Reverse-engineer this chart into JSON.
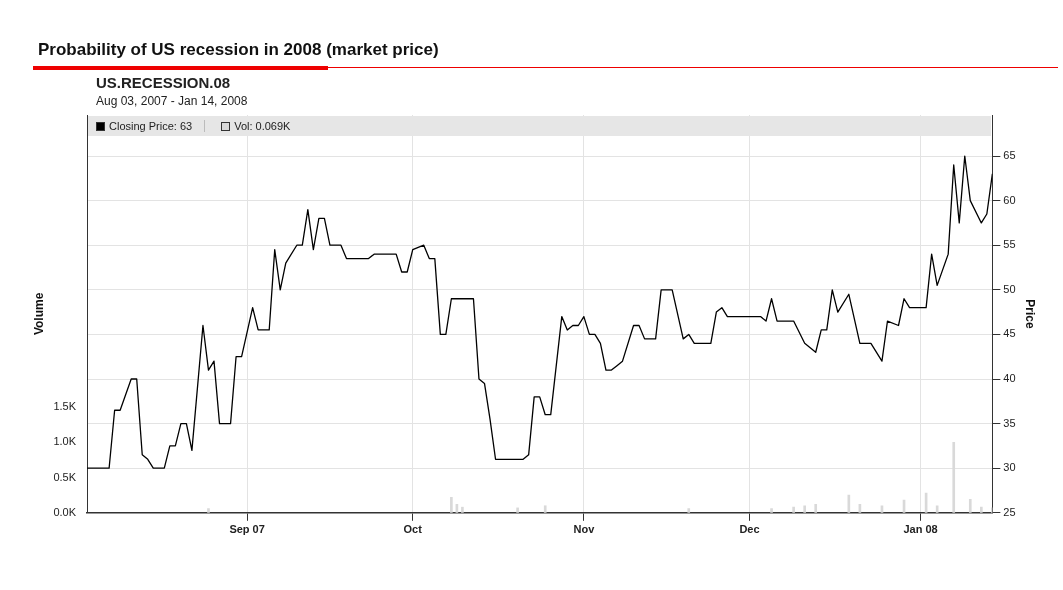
{
  "chart_data": {
    "type": "line",
    "title": "Probability of US recession in 2008 (market price)",
    "subtitle": "US.RECESSION.08\nAug 03, 2007 - Jan 14, 2008",
    "ylabel": "Price",
    "y2label": "Volume",
    "xlim": [
      "2007-08-03",
      "2008-01-14"
    ],
    "xticks": [
      {
        "value": "2007-09-01",
        "label": "Sep 07"
      },
      {
        "value": "2007-10-01",
        "label": "Oct"
      },
      {
        "value": "2007-11-01",
        "label": "Nov"
      },
      {
        "value": "2007-12-01",
        "label": "Dec"
      },
      {
        "value": "2008-01-01",
        "label": "Jan 08"
      }
    ],
    "ylim": [
      25,
      69.6
    ],
    "yticks": [
      25,
      30,
      35,
      40,
      45,
      50,
      55,
      60,
      65
    ],
    "y2lim": [
      0,
      5.65
    ],
    "y2ticks": [
      {
        "value": 0,
        "label": "0.0K"
      },
      {
        "value": 0.5,
        "label": "0.5K"
      },
      {
        "value": 1,
        "label": "1.0K"
      },
      {
        "value": 1.5,
        "label": "1.5K"
      }
    ],
    "grid": true,
    "legend": "top left",
    "marker": "none",
    "line_style": "solid",
    "series": [
      {
        "name": "Closing Price: 63",
        "color": "#000000",
        "x": [
          "2007-08-03",
          "2007-08-07",
          "2007-08-08",
          "2007-08-09",
          "2007-08-11",
          "2007-08-12",
          "2007-08-13",
          "2007-08-14",
          "2007-08-15",
          "2007-08-17",
          "2007-08-18",
          "2007-08-19",
          "2007-08-20",
          "2007-08-21",
          "2007-08-22",
          "2007-08-24",
          "2007-08-25",
          "2007-08-26",
          "2007-08-27",
          "2007-08-29",
          "2007-08-30",
          "2007-08-31",
          "2007-09-02",
          "2007-09-03",
          "2007-09-05",
          "2007-09-06",
          "2007-09-07",
          "2007-09-08",
          "2007-09-10",
          "2007-09-11",
          "2007-09-12",
          "2007-09-13",
          "2007-09-14",
          "2007-09-15",
          "2007-09-16",
          "2007-09-18",
          "2007-09-19",
          "2007-09-23",
          "2007-09-24",
          "2007-09-28",
          "2007-09-29",
          "2007-09-30",
          "2007-10-01",
          "2007-10-03",
          "2007-10-04",
          "2007-10-05",
          "2007-10-06",
          "2007-10-07",
          "2007-10-08",
          "2007-10-12",
          "2007-10-13",
          "2007-10-14",
          "2007-10-15",
          "2007-10-16",
          "2007-10-21",
          "2007-10-22",
          "2007-10-23",
          "2007-10-24",
          "2007-10-25",
          "2007-10-26",
          "2007-10-28",
          "2007-10-29",
          "2007-10-30",
          "2007-10-31",
          "2007-11-01",
          "2007-11-02",
          "2007-11-03",
          "2007-11-04",
          "2007-11-05",
          "2007-11-06",
          "2007-11-07",
          "2007-11-08",
          "2007-11-10",
          "2007-11-11",
          "2007-11-12",
          "2007-11-14",
          "2007-11-15",
          "2007-11-17",
          "2007-11-19",
          "2007-11-20",
          "2007-11-21",
          "2007-11-24",
          "2007-11-25",
          "2007-11-26",
          "2007-11-27",
          "2007-12-03",
          "2007-12-04",
          "2007-12-05",
          "2007-12-06",
          "2007-12-09",
          "2007-12-11",
          "2007-12-12",
          "2007-12-13",
          "2007-12-14",
          "2007-12-15",
          "2007-12-16",
          "2007-12-17",
          "2007-12-19",
          "2007-12-21",
          "2007-12-23",
          "2007-12-25",
          "2007-12-26",
          "2007-12-28",
          "2007-12-29",
          "2007-12-30",
          "2008-01-01",
          "2008-01-02",
          "2008-01-03",
          "2008-01-04",
          "2008-01-06",
          "2008-01-07",
          "2008-01-08",
          "2008-01-09",
          "2008-01-10",
          "2008-01-12",
          "2008-01-13",
          "2008-01-14"
        ],
        "values": [
          30,
          30,
          36.5,
          36.5,
          40,
          40,
          31.5,
          31,
          30,
          30,
          32.5,
          32.5,
          35,
          35,
          32,
          46,
          41,
          42,
          35,
          35,
          42.5,
          42.5,
          48,
          45.5,
          45.5,
          54.5,
          50,
          53,
          55,
          55,
          59,
          54.5,
          58,
          58,
          55,
          55,
          53.5,
          53.5,
          54,
          54,
          52,
          52,
          54.5,
          55,
          53.5,
          53.5,
          45,
          45,
          49,
          49,
          40,
          39.5,
          35.5,
          31,
          31,
          31.5,
          38,
          38,
          36,
          36,
          47,
          45.5,
          46,
          46,
          47,
          45,
          45,
          44,
          41,
          41,
          41.5,
          42,
          46,
          46,
          44.5,
          44.5,
          50,
          50,
          44.5,
          45,
          44,
          44,
          47.5,
          48,
          47,
          47,
          46.5,
          49,
          46.5,
          46.5,
          44,
          43.5,
          43,
          45.5,
          45.5,
          50,
          47.5,
          49.5,
          44,
          44,
          42,
          46.5,
          46,
          49,
          48,
          48,
          48,
          54,
          50.5,
          54,
          64,
          57.5,
          65,
          60,
          57.5,
          58.5,
          63
        ]
      },
      {
        "name": "Vol: 0.069K",
        "type": "bar",
        "axis": "y2",
        "color": "#d9d9d9",
        "x": [
          "2007-08-25",
          "2007-10-08",
          "2007-10-09",
          "2007-10-10",
          "2007-10-20",
          "2007-10-25",
          "2007-11-20",
          "2007-12-05",
          "2007-12-09",
          "2007-12-11",
          "2007-12-13",
          "2007-12-19",
          "2007-12-21",
          "2007-12-25",
          "2007-12-29",
          "2008-01-02",
          "2008-01-04",
          "2008-01-07",
          "2008-01-10",
          "2008-01-12",
          "2008-01-14"
        ],
        "values": [
          0.06,
          0.22,
          0.12,
          0.08,
          0.07,
          0.1,
          0.06,
          0.06,
          0.08,
          0.1,
          0.12,
          0.25,
          0.12,
          0.1,
          0.18,
          0.28,
          0.1,
          1.0,
          0.19,
          0.08,
          0.07
        ]
      }
    ]
  }
}
